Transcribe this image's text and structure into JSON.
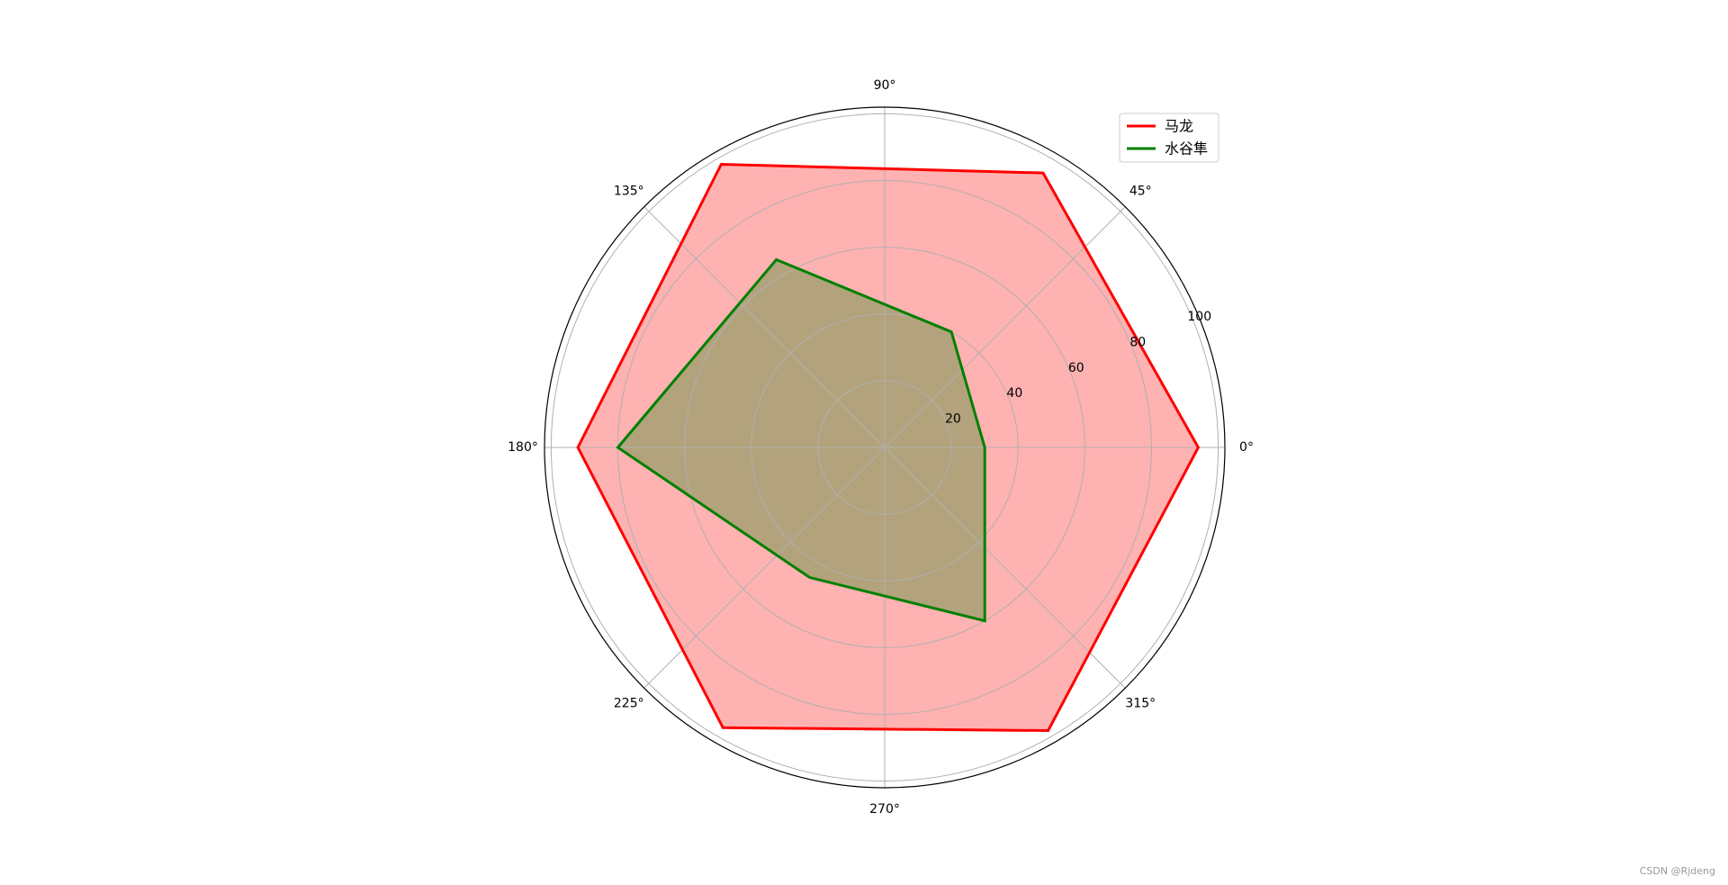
{
  "chart_data": {
    "type": "radar",
    "x": [
      0,
      60,
      120,
      180,
      240,
      300
    ],
    "series": [
      {
        "name": "马龙",
        "color": "#ff0000",
        "values": [
          94,
          95,
          98,
          92,
          97,
          98
        ]
      },
      {
        "name": "水谷隼",
        "color": "#008000",
        "values": [
          30,
          40,
          65,
          80,
          45,
          60
        ]
      }
    ],
    "ylim": [
      0,
      102
    ],
    "yticks": [
      20,
      40,
      60,
      80,
      100
    ],
    "xticks": [
      {
        "value": 0,
        "label": "0°"
      },
      {
        "value": 45,
        "label": "45°"
      },
      {
        "value": 90,
        "label": "90°"
      },
      {
        "value": 135,
        "label": "135°"
      },
      {
        "value": 180,
        "label": "180°"
      },
      {
        "value": 225,
        "label": "225°"
      },
      {
        "value": 270,
        "label": "270°"
      },
      {
        "value": 315,
        "label": "315°"
      }
    ],
    "grid": true,
    "legend": "upper right",
    "watermark": "CSDN @Rjdeng"
  }
}
